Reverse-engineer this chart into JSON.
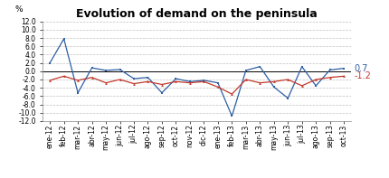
{
  "title": "Evolution of demand on the peninsula",
  "ylabel": "%",
  "ylim": [
    -12,
    12
  ],
  "yticks": [
    -12,
    -10,
    -8,
    -6,
    -4,
    -2,
    0,
    2,
    4,
    6,
    8,
    10,
    12
  ],
  "ytick_labels": [
    "-12.0",
    "-10.0",
    "-8.0",
    "-6.0",
    "-4.0",
    "-2.0",
    "0.0",
    "2.0",
    "4.0",
    "6.0",
    "8.0",
    "10.0",
    "12.0"
  ],
  "categories": [
    "ene-12",
    "feb-12",
    "mar-12",
    "abr-12",
    "may-12",
    "jun-12",
    "jul-12",
    "ago-12",
    "sep-12",
    "oct-12",
    "nov-12",
    "dic-12",
    "ene-13",
    "feb-13",
    "mar-13",
    "abr-13",
    "may-13",
    "jun-13",
    "jul-13",
    "ago-13",
    "sep-13",
    "oct-13"
  ],
  "blue_series": [
    2.0,
    7.8,
    -5.2,
    0.8,
    0.2,
    0.4,
    -1.8,
    -1.5,
    -5.2,
    -1.8,
    -2.5,
    -2.2,
    -2.8,
    -10.8,
    0.2,
    1.1,
    -3.8,
    -6.5,
    1.1,
    -3.5,
    0.3,
    0.7
  ],
  "red_series": [
    -2.2,
    -1.2,
    -2.2,
    -1.5,
    -2.8,
    -2.0,
    -3.0,
    -2.5,
    -3.2,
    -2.5,
    -2.8,
    -2.5,
    -3.8,
    -5.5,
    -2.0,
    -2.8,
    -2.5,
    -2.0,
    -3.5,
    -2.0,
    -1.5,
    -1.2
  ],
  "blue_color": "#2E5FA3",
  "red_color": "#C0392B",
  "label_blue": "0.7",
  "label_red": "-1.2",
  "background_color": "#FFFFFF",
  "grid_color": "#C0C0C0",
  "title_fontsize": 9,
  "axis_fontsize": 5.5,
  "label_fontsize": 7
}
